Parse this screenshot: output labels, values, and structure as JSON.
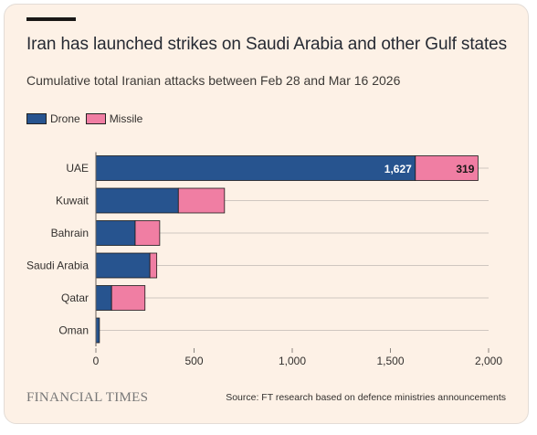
{
  "header": {
    "title": "Iran has launched strikes on Saudi Arabia and other Gulf states",
    "subtitle": "Cumulative total Iranian attacks between Feb 28 and Mar 16 2026"
  },
  "footer": {
    "brand": "FINANCIAL TIMES",
    "source": "Source: FT research based on defence ministries announcements"
  },
  "colors": {
    "drone": "#27548f",
    "missile": "#f07ea3",
    "background": "#fdf1e6",
    "gridline": "#cfc7c0"
  },
  "chart_data": {
    "type": "bar",
    "orientation": "horizontal",
    "stacked": true,
    "categories": [
      "UAE",
      "Kuwait",
      "Bahrain",
      "Saudi Arabia",
      "Qatar",
      "Oman"
    ],
    "series": [
      {
        "name": "Drone",
        "values": [
          1627,
          420,
          200,
          275,
          80,
          18
        ]
      },
      {
        "name": "Missile",
        "values": [
          319,
          235,
          125,
          35,
          170,
          0
        ]
      }
    ],
    "data_labels": [
      "1,627",
      "319"
    ],
    "x_ticks": [
      0,
      500,
      1000,
      1500,
      2000
    ],
    "x_tick_labels": [
      "0",
      "500",
      "1,000",
      "1,500",
      "2,000"
    ],
    "xlim": [
      0,
      2000
    ],
    "legend_position": "top-left",
    "grid": true
  }
}
